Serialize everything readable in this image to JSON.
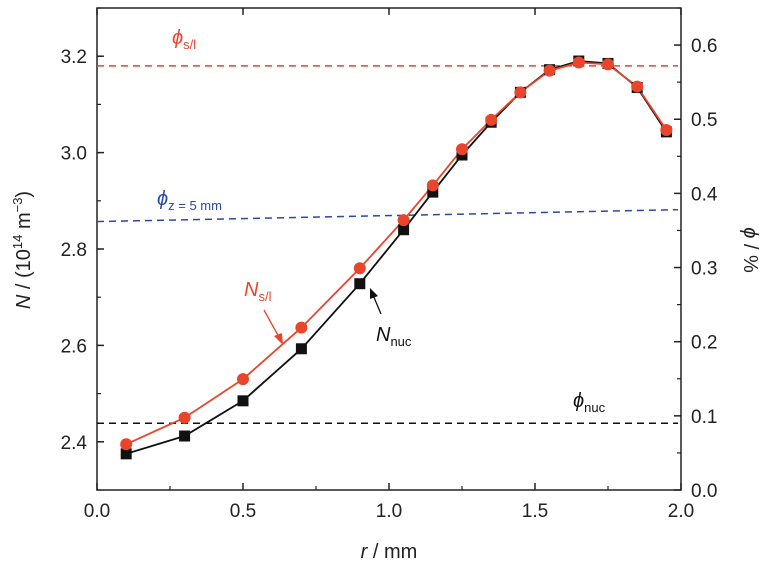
{
  "chart_data": {
    "type": "line",
    "xlabel_parts": {
      "var": "r",
      "unit": " / mm"
    },
    "ylabel_left_parts": {
      "var": "N",
      "unit": " / (10",
      "exp": "14",
      "unit2": " m",
      "exp2": "−3",
      "close": ")"
    },
    "ylabel_right_parts": {
      "var": "ϕ",
      "unit": " / %"
    },
    "xlim": [
      0.0,
      2.0
    ],
    "ylim_left": [
      2.3,
      3.3
    ],
    "ylim_right": [
      0.0,
      0.65
    ],
    "x_ticks": [
      "0.0",
      "0.5",
      "1.0",
      "1.5",
      "2.0"
    ],
    "y_left_ticks": [
      "2.4",
      "2.6",
      "2.8",
      "3.0",
      "3.2"
    ],
    "y_right_ticks": [
      "0.0",
      "0.1",
      "0.2",
      "0.3",
      "0.4",
      "0.5",
      "0.6"
    ],
    "grid": false,
    "series": [
      {
        "label_main": "N",
        "label_sub": "s/l",
        "axis": "left",
        "color": "#e8452c",
        "marker": "circle",
        "x": [
          0.1,
          0.3,
          0.5,
          0.7,
          0.9,
          1.05,
          1.15,
          1.25,
          1.35,
          1.45,
          1.55,
          1.65,
          1.75,
          1.85,
          1.95
        ],
        "y": [
          2.395,
          2.45,
          2.53,
          2.637,
          2.76,
          2.86,
          2.932,
          3.007,
          3.068,
          3.125,
          3.17,
          3.187,
          3.183,
          3.137,
          3.047
        ]
      },
      {
        "label_main": "N",
        "label_sub": "nuc",
        "axis": "left",
        "color": "#111111",
        "marker": "square",
        "x": [
          0.1,
          0.3,
          0.5,
          0.7,
          0.9,
          1.05,
          1.15,
          1.25,
          1.35,
          1.45,
          1.55,
          1.65,
          1.75,
          1.85,
          1.95
        ],
        "y": [
          2.375,
          2.412,
          2.485,
          2.593,
          2.728,
          2.84,
          2.918,
          2.995,
          3.063,
          3.125,
          3.172,
          3.19,
          3.185,
          3.135,
          3.043
        ]
      },
      {
        "label_main": "ϕ",
        "label_sub": "s/l",
        "axis": "right",
        "color": "#e8452c",
        "style": "dashed",
        "x": [
          0.0,
          2.0
        ],
        "y": [
          0.572,
          0.572
        ]
      },
      {
        "label_main": "ϕ",
        "label_sub": "z = 5 mm",
        "axis": "right",
        "color": "#2a48a8",
        "style": "dashed",
        "x": [
          0.0,
          2.0
        ],
        "y": [
          0.362,
          0.378
        ]
      },
      {
        "label_main": "ϕ",
        "label_sub": "nuc",
        "axis": "right",
        "color": "#111111",
        "style": "dashed",
        "x": [
          0.0,
          2.0
        ],
        "y": [
          0.09,
          0.09
        ]
      }
    ]
  }
}
